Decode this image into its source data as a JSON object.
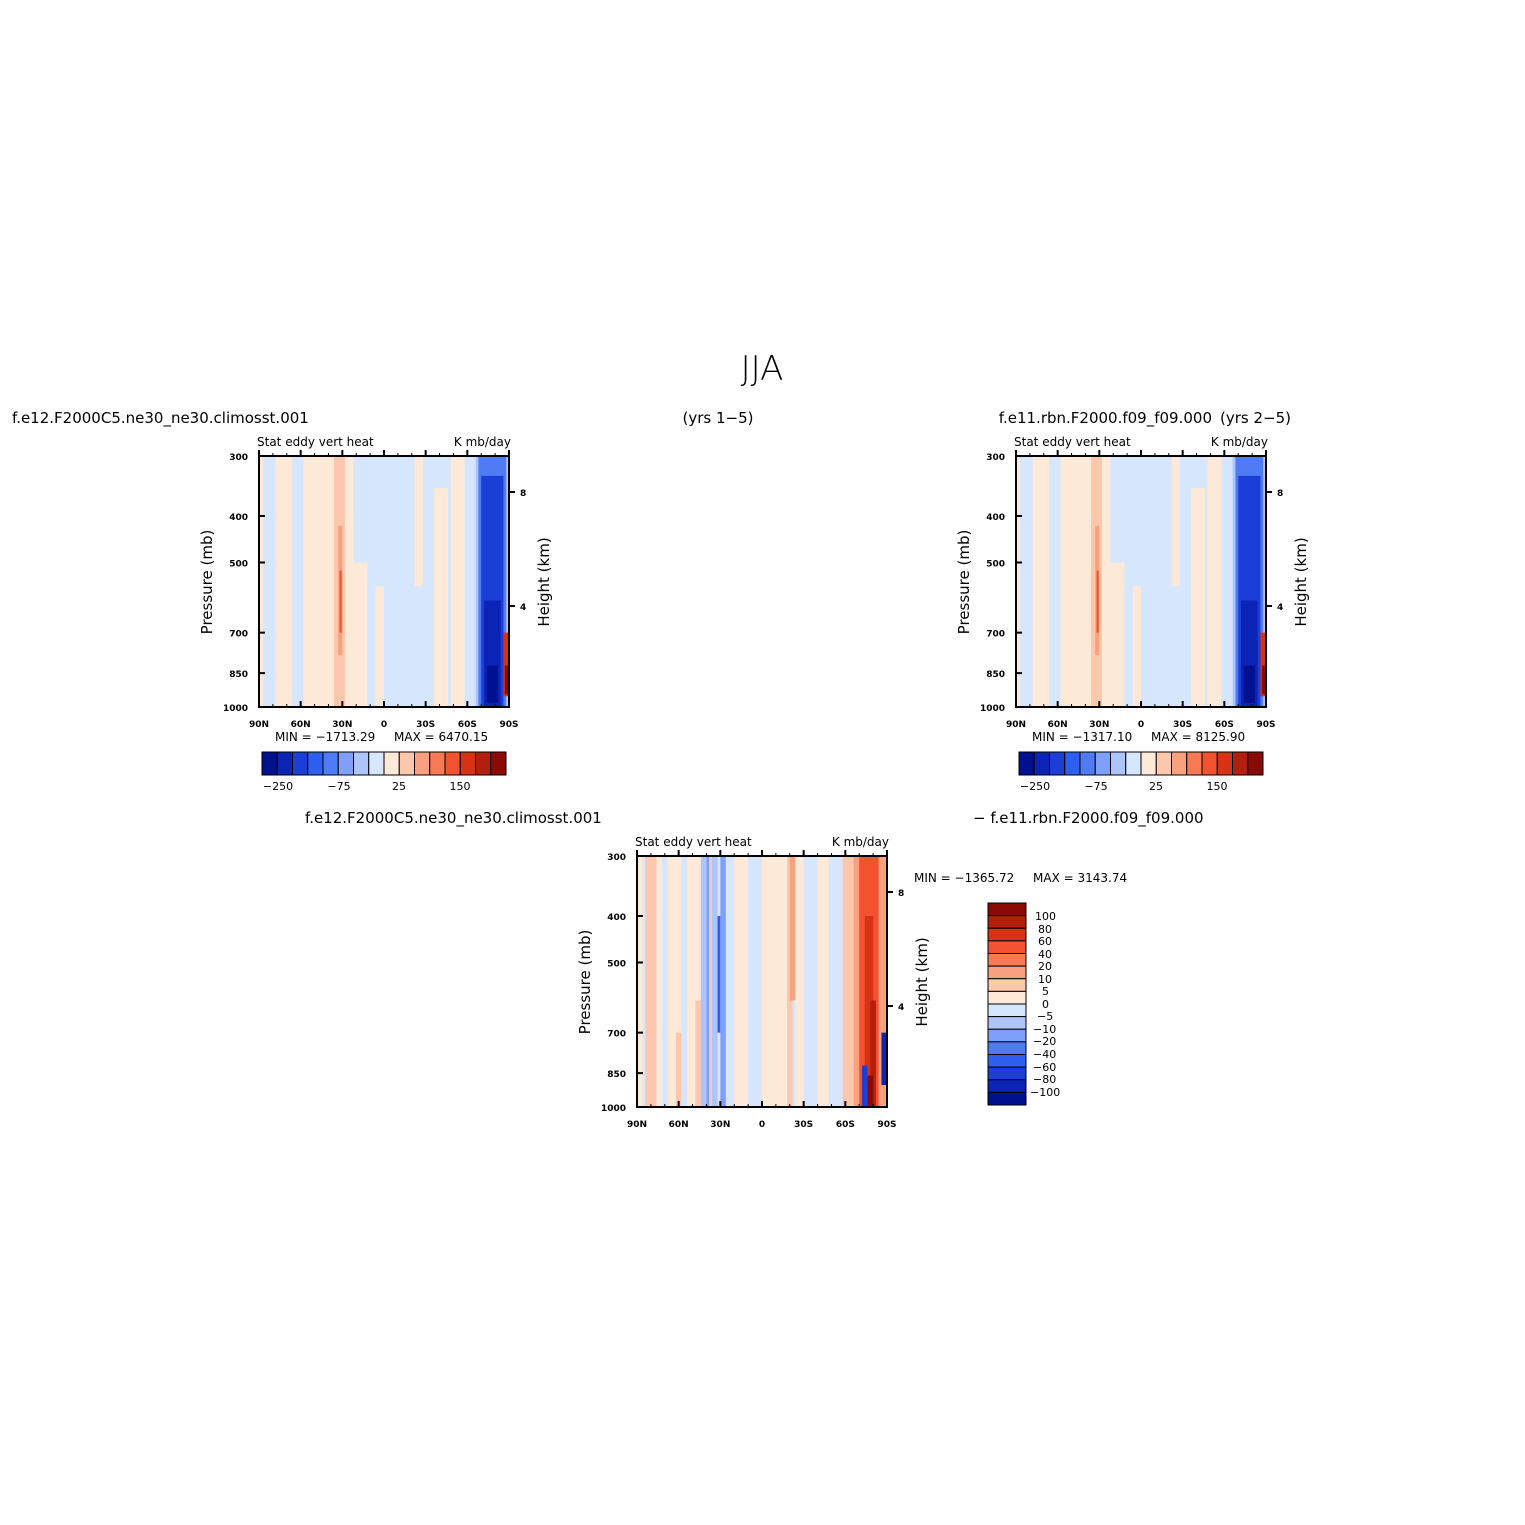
{
  "page": {
    "title": "JJA",
    "case1": "f.e12.F2000C5.ne30_ne30.climosst.001",
    "years1": "(yrs 1−5)",
    "case2": "f.e11.rbn.F2000.f09_f09.000",
    "years2": "(yrs 2−5)",
    "diff_left": "f.e12.F2000C5.ne30_ne30.climosst.001",
    "diff_right": "− f.e11.rbn.F2000.f09_f09.000"
  },
  "chart_data": [
    {
      "type": "heatmap",
      "id": "panel1",
      "title_left": "Stat eddy vert heat",
      "title_right": "K mb/day",
      "ylabel": "Pressure (mb)",
      "ylabel_right": "Height (km)",
      "x_ticks": [
        "90N",
        "60N",
        "30N",
        "0",
        "30S",
        "60S",
        "90S"
      ],
      "x_values": [
        90,
        60,
        30,
        0,
        -30,
        -60,
        -90
      ],
      "y_ticks": [
        300,
        400,
        500,
        700,
        850,
        1000
      ],
      "y_right_ticks": [
        8,
        4
      ],
      "ylim": [
        1000,
        300
      ],
      "log_scale_y": true,
      "min_label": "MIN = −1713.29",
      "max_label": "MAX = 6470.15",
      "colorbar_labels": [
        "−250",
        "−75",
        "25",
        "150"
      ]
    },
    {
      "type": "heatmap",
      "id": "panel2",
      "title_left": "Stat eddy vert heat",
      "title_right": "K mb/day",
      "ylabel": "Pressure (mb)",
      "ylabel_right": "Height (km)",
      "x_ticks": [
        "90N",
        "60N",
        "30N",
        "0",
        "30S",
        "60S",
        "90S"
      ],
      "x_values": [
        90,
        60,
        30,
        0,
        -30,
        -60,
        -90
      ],
      "y_ticks": [
        300,
        400,
        500,
        700,
        850,
        1000
      ],
      "y_right_ticks": [
        8,
        4
      ],
      "ylim": [
        1000,
        300
      ],
      "log_scale_y": true,
      "min_label": "MIN = −1317.10",
      "max_label": "MAX = 8125.90",
      "colorbar_labels": [
        "−250",
        "−75",
        "25",
        "150"
      ]
    },
    {
      "type": "heatmap",
      "id": "diff",
      "title_left": "Stat eddy vert heat",
      "title_right": "K mb/day",
      "ylabel": "Pressure (mb)",
      "ylabel_right": "Height (km)",
      "x_ticks": [
        "90N",
        "60N",
        "30N",
        "0",
        "30S",
        "60S",
        "90S"
      ],
      "x_values": [
        90,
        60,
        30,
        0,
        -30,
        -60,
        -90
      ],
      "y_ticks": [
        300,
        400,
        500,
        700,
        850,
        1000
      ],
      "y_right_ticks": [
        8,
        4
      ],
      "ylim": [
        1000,
        300
      ],
      "log_scale_y": true,
      "min_label": "MIN = −1365.72",
      "max_label": "MAX = 3143.74",
      "colorbar_labels": [
        "100",
        "80",
        "60",
        "40",
        "20",
        "10",
        "5",
        "0",
        "−5",
        "−10",
        "−20",
        "−40",
        "−60",
        "−80",
        "−100"
      ]
    }
  ],
  "colors": {
    "main_scale": [
      "#00118f",
      "#0c24b6",
      "#1b3fd6",
      "#2e5ff0",
      "#4f7cf5",
      "#7ea0f8",
      "#aec5fb",
      "#d6e6fd",
      "#fde9d7",
      "#fbc8ad",
      "#f9a17f",
      "#f77a55",
      "#f2522f",
      "#d63315",
      "#b21f0c",
      "#8a0b05"
    ],
    "diff_scale": [
      "#8a0b05",
      "#b21f0c",
      "#d63315",
      "#f2522f",
      "#f77a55",
      "#f9a17f",
      "#fbc8ad",
      "#fde9d7",
      "#d6e6fd",
      "#aec5fb",
      "#7ea0f8",
      "#4f7cf5",
      "#2e5ff0",
      "#1b3fd6",
      "#0c24b6",
      "#00118f"
    ]
  }
}
